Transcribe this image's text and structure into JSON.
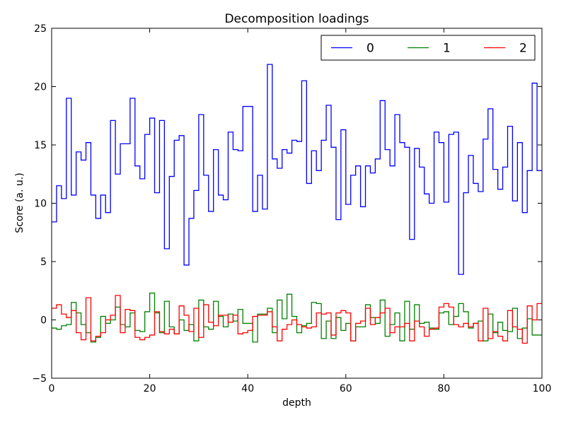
{
  "chart_data": {
    "type": "line",
    "drawstyle": "steps-post",
    "title": "Decomposition loadings",
    "xlabel": "depth",
    "ylabel": "Score (a. u.)",
    "xlim": [
      0,
      100
    ],
    "ylim": [
      -5,
      25
    ],
    "xticks": [
      "0",
      "20",
      "40",
      "60",
      "80",
      "100"
    ],
    "yticks": [
      "−5",
      "0",
      "5",
      "10",
      "15",
      "20",
      "25"
    ],
    "grid": false,
    "legend_position": "top-right",
    "x": [
      0,
      1,
      2,
      3,
      4,
      5,
      6,
      7,
      8,
      9,
      10,
      11,
      12,
      13,
      14,
      15,
      16,
      17,
      18,
      19,
      20,
      21,
      22,
      23,
      24,
      25,
      26,
      27,
      28,
      29,
      30,
      31,
      32,
      33,
      34,
      35,
      36,
      37,
      38,
      39,
      40,
      41,
      42,
      43,
      44,
      45,
      46,
      47,
      48,
      49,
      50,
      51,
      52,
      53,
      54,
      55,
      56,
      57,
      58,
      59,
      60,
      61,
      62,
      63,
      64,
      65,
      66,
      67,
      68,
      69,
      70,
      71,
      72,
      73,
      74,
      75,
      76,
      77,
      78,
      79,
      80,
      81,
      82,
      83,
      84,
      85,
      86,
      87,
      88,
      89,
      90,
      91,
      92,
      93,
      94,
      95,
      96,
      97,
      98,
      99
    ],
    "series": [
      {
        "name": "0",
        "color": "#0000ff",
        "values": [
          8.4,
          11.5,
          10.4,
          19.0,
          10.7,
          14.4,
          13.7,
          15.2,
          10.7,
          8.7,
          10.7,
          9.2,
          17.1,
          12.5,
          15.1,
          15.1,
          19.0,
          13.2,
          12.1,
          15.9,
          17.3,
          10.9,
          17.1,
          6.1,
          12.3,
          15.4,
          15.8,
          4.7,
          8.7,
          11.1,
          17.6,
          12.4,
          9.3,
          14.6,
          10.7,
          10.3,
          16.1,
          14.6,
          14.5,
          18.3,
          18.3,
          9.3,
          12.4,
          9.5,
          21.9,
          13.8,
          13.0,
          14.6,
          14.3,
          15.4,
          15.3,
          20.5,
          11.7,
          14.5,
          12.8,
          15.4,
          18.4,
          14.8,
          8.6,
          16.3,
          9.9,
          12.4,
          13.2,
          9.7,
          13.2,
          12.6,
          13.8,
          18.8,
          14.6,
          13.2,
          17.6,
          15.2,
          14.8,
          6.9,
          14.7,
          13.1,
          10.8,
          10.0,
          16.1,
          15.2,
          10.1,
          15.9,
          16.1,
          3.9,
          10.9,
          14.1,
          11.7,
          11.0,
          15.5,
          18.1,
          12.9,
          11.2,
          13.1,
          16.6,
          10.2,
          15.2,
          9.2,
          12.8,
          20.3,
          12.8
        ]
      },
      {
        "name": "1",
        "color": "#008000",
        "values": [
          -0.7,
          -0.8,
          -0.5,
          -0.4,
          1.5,
          0.6,
          -0.4,
          -1.1,
          -1.9,
          -1.5,
          0.3,
          -0.3,
          0.0,
          1.1,
          -0.4,
          -0.6,
          0.6,
          -0.9,
          -1.0,
          0.7,
          2.3,
          0.6,
          -1.1,
          1.6,
          -0.6,
          -1.2,
          0.0,
          -0.9,
          -0.4,
          -1.8,
          1.7,
          -0.6,
          -0.8,
          1.6,
          0.3,
          -0.6,
          0.5,
          -0.1,
          0.9,
          -0.3,
          -0.3,
          -1.9,
          0.5,
          0.5,
          1.0,
          -1.1,
          1.7,
          0.1,
          2.2,
          0.3,
          -1.1,
          -0.5,
          -0.3,
          1.5,
          1.4,
          -1.6,
          -0.1,
          -1.6,
          0.2,
          -0.9,
          -0.3,
          -1.8,
          -0.6,
          -0.6,
          1.3,
          0.2,
          -0.3,
          1.7,
          -1.4,
          -0.4,
          0.6,
          -1.8,
          1.6,
          -0.8,
          1.3,
          -0.3,
          -0.2,
          -0.7,
          -0.8,
          0.6,
          0.7,
          -0.4,
          0.3,
          1.4,
          0.7,
          -0.7,
          -0.3,
          -0.1,
          -1.8,
          0.5,
          -1.1,
          -0.2,
          -0.9,
          -1.0,
          1.0,
          -1.6,
          -0.7,
          0.1,
          -1.3,
          -1.3
        ]
      },
      {
        "name": "2",
        "color": "#ff0000",
        "values": [
          1.0,
          1.3,
          0.5,
          0.2,
          0.8,
          -1.1,
          -1.7,
          1.9,
          -1.8,
          -1.4,
          -1.1,
          0.0,
          0.4,
          2.1,
          -1.1,
          0.9,
          0.8,
          -1.5,
          -1.7,
          -1.5,
          -1.3,
          0.7,
          -1.0,
          -1.2,
          -0.8,
          -1.2,
          1.2,
          0.4,
          -1.0,
          1.0,
          -1.5,
          1.3,
          -0.2,
          -0.5,
          0.4,
          0.4,
          -0.2,
          0.4,
          -1.2,
          -1.1,
          -0.9,
          0.3,
          0.4,
          0.4,
          0.7,
          -0.6,
          -1.8,
          -0.8,
          -0.4,
          0.0,
          -0.4,
          -0.6,
          -0.7,
          -0.6,
          0.6,
          0.5,
          0.6,
          -1.3,
          0.6,
          0.8,
          0.6,
          -1.8,
          -0.3,
          -0.1,
          1.0,
          -0.4,
          0.2,
          0.6,
          1.0,
          -1.1,
          -0.6,
          -0.6,
          -0.3,
          -1.8,
          -0.1,
          -0.6,
          -1.4,
          -0.8,
          -0.7,
          1.1,
          1.4,
          1.1,
          -0.4,
          -0.6,
          -0.3,
          -0.6,
          -0.3,
          -1.8,
          1.0,
          -1.6,
          -1.0,
          -1.4,
          -1.8,
          0.8,
          -0.6,
          -0.8,
          -2.0,
          1.2,
          0.0,
          1.4
        ]
      }
    ]
  }
}
